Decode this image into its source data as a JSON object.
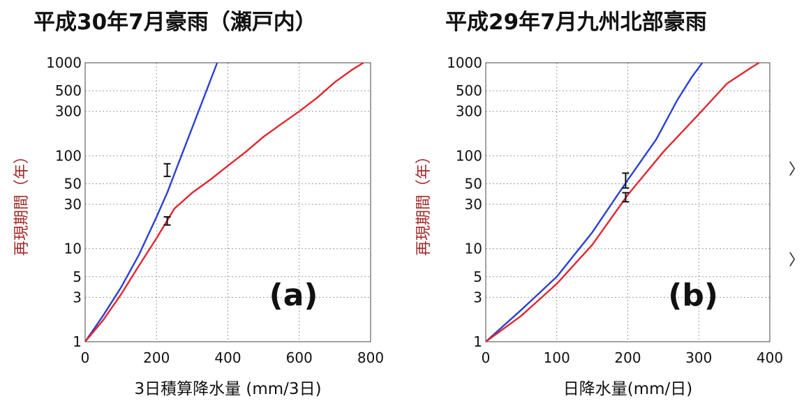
{
  "chart_data": [
    {
      "type": "line",
      "title": "平成30年7月豪雨（瀬戸内）",
      "panel_label": "(a)",
      "xlabel": "3日積算降水量 (mm/3日)",
      "ylabel": "再現期間（年）",
      "xlim": [
        0,
        800
      ],
      "ylim": [
        1,
        1000
      ],
      "yscale": "log",
      "xticks": [
        "0",
        "200",
        "400",
        "600",
        "800"
      ],
      "yticks": [
        "1",
        "3",
        "5",
        "10",
        "30",
        "50",
        "100",
        "300",
        "500",
        "1000"
      ],
      "grid": true,
      "series": [
        {
          "color": "#2a3fd6",
          "points": [
            [
              0,
              1
            ],
            [
              50,
              1.9
            ],
            [
              100,
              3.8
            ],
            [
              150,
              8.5
            ],
            [
              200,
              22
            ],
            [
              230,
              40
            ],
            [
              260,
              80
            ],
            [
              300,
              200
            ],
            [
              340,
              500
            ],
            [
              370,
              1000
            ]
          ]
        },
        {
          "color": "#e0262e",
          "points": [
            [
              0,
              1
            ],
            [
              50,
              1.7
            ],
            [
              100,
              3.2
            ],
            [
              150,
              6.5
            ],
            [
              200,
              13
            ],
            [
              250,
              27
            ],
            [
              300,
              40
            ],
            [
              350,
              55
            ],
            [
              400,
              78
            ],
            [
              450,
              110
            ],
            [
              500,
              160
            ],
            [
              550,
              220
            ],
            [
              600,
              300
            ],
            [
              650,
              420
            ],
            [
              700,
              620
            ],
            [
              750,
              850
            ],
            [
              780,
              1000
            ]
          ]
        }
      ],
      "error_bars": [
        {
          "x": 230,
          "y": 70,
          "ylow": 60,
          "yhigh": 82
        },
        {
          "x": 230,
          "y": 20,
          "ylow": 18,
          "yhigh": 22
        }
      ]
    },
    {
      "type": "line",
      "title": "平成29年7月九州北部豪雨",
      "panel_label": "(b)",
      "xlabel": "日降水量(mm/日)",
      "ylabel": "再現期間（年）",
      "xlim": [
        0,
        400
      ],
      "ylim": [
        1,
        1000
      ],
      "yscale": "log",
      "xticks": [
        "0",
        "100",
        "200",
        "300",
        "400"
      ],
      "yticks": [
        "1",
        "3",
        "5",
        "10",
        "30",
        "50",
        "100",
        "300",
        "500",
        "1000"
      ],
      "grid": true,
      "series": [
        {
          "color": "#2a3fd6",
          "points": [
            [
              0,
              1
            ],
            [
              50,
              2.2
            ],
            [
              100,
              5
            ],
            [
              150,
              15
            ],
            [
              200,
              55
            ],
            [
              240,
              150
            ],
            [
              270,
              400
            ],
            [
              290,
              700
            ],
            [
              305,
              1000
            ]
          ]
        },
        {
          "color": "#e0262e",
          "points": [
            [
              0,
              1
            ],
            [
              50,
              1.9
            ],
            [
              100,
              4.2
            ],
            [
              150,
              11
            ],
            [
              200,
              38
            ],
            [
              250,
              110
            ],
            [
              300,
              280
            ],
            [
              340,
              600
            ],
            [
              375,
              900
            ],
            [
              385,
              1000
            ]
          ]
        }
      ],
      "error_bars": [
        {
          "x": 197,
          "y": 55,
          "ylow": 45,
          "yhigh": 65
        },
        {
          "x": 197,
          "y": 36,
          "ylow": 32,
          "yhigh": 40
        }
      ]
    }
  ]
}
